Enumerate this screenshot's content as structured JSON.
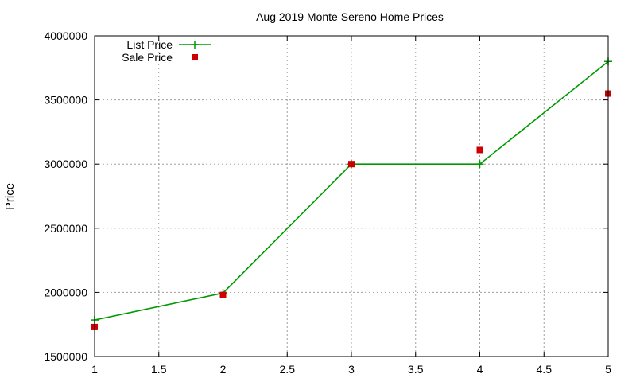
{
  "chart_data": {
    "type": "line",
    "title": "Aug 2019 Monte Sereno Home Prices",
    "xlabel": "",
    "ylabel": "Price",
    "xlim": [
      1,
      5
    ],
    "ylim": [
      1500000,
      4000000
    ],
    "xticks": [
      "1",
      "1.5",
      "2",
      "2.5",
      "3",
      "3.5",
      "4",
      "4.5",
      "5"
    ],
    "yticks": [
      "1500000",
      "2000000",
      "2500000",
      "3000000",
      "3500000",
      "4000000"
    ],
    "grid": true,
    "legend_position": "top-left",
    "series": [
      {
        "name": "List Price",
        "style": "line-with-plus-markers",
        "color": "#009900",
        "x": [
          1,
          2,
          3,
          4,
          5
        ],
        "y": [
          1785000,
          1995000,
          3000000,
          3000000,
          3800000
        ]
      },
      {
        "name": "Sale Price",
        "style": "square-markers",
        "color": "#cc0000",
        "x": [
          1,
          2,
          3,
          4,
          5
        ],
        "y": [
          1730000,
          1980000,
          3000000,
          3110000,
          3550000
        ]
      }
    ]
  }
}
